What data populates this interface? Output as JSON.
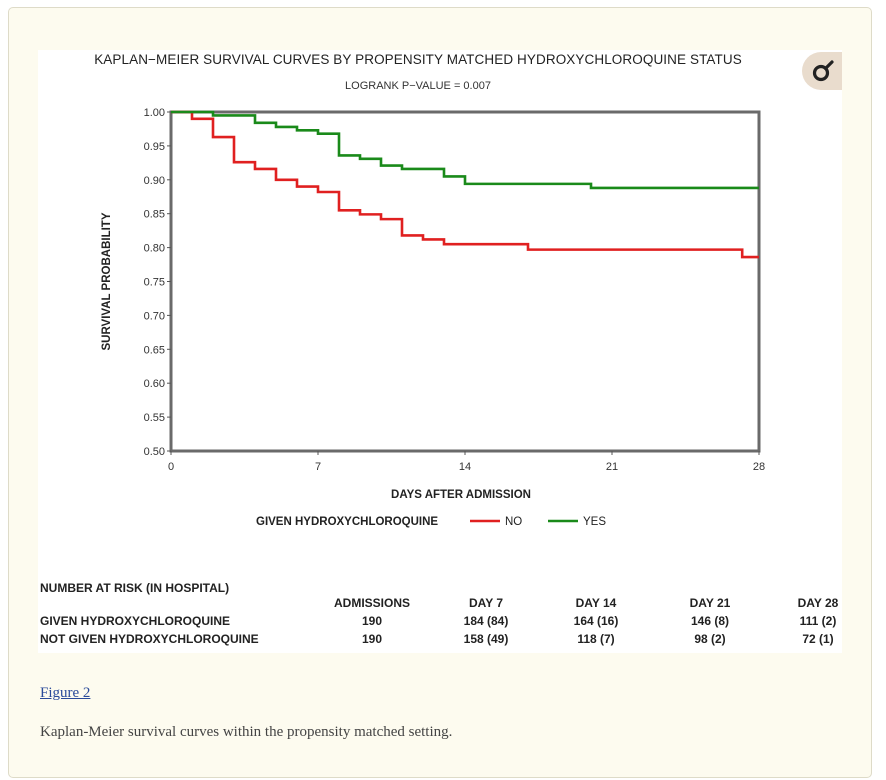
{
  "chart_data": {
    "type": "line",
    "title": "KAPLAN−MEIER SURVIVAL CURVES BY PROPENSITY MATCHED HYDROXYCHLOROQUINE STATUS",
    "subtitle": "LOGRANK P−VALUE = 0.007",
    "xlabel": "DAYS AFTER ADMISSION",
    "ylabel": "SURVIVAL PROBABILITY",
    "xlim": [
      0,
      28
    ],
    "ylim": [
      0.5,
      1.0
    ],
    "x_ticks": [
      "0",
      "7",
      "14",
      "21",
      "28"
    ],
    "y_ticks": [
      "0.50",
      "0.55",
      "0.60",
      "0.65",
      "0.70",
      "0.75",
      "0.80",
      "0.85",
      "0.90",
      "0.95",
      "1.00"
    ],
    "legend_title": "GIVEN HYDROXYCHLOROQUINE",
    "legend_position": "bottom",
    "series": [
      {
        "name": "NO",
        "color": "#e02020",
        "step": true,
        "points": [
          [
            0,
            1.0
          ],
          [
            1,
            0.99
          ],
          [
            2,
            0.963
          ],
          [
            3,
            0.926
          ],
          [
            4,
            0.916
          ],
          [
            5,
            0.9
          ],
          [
            6,
            0.89
          ],
          [
            7,
            0.882
          ],
          [
            8,
            0.855
          ],
          [
            9,
            0.849
          ],
          [
            10,
            0.842
          ],
          [
            11,
            0.818
          ],
          [
            12,
            0.812
          ],
          [
            13,
            0.805
          ],
          [
            17,
            0.797
          ],
          [
            27.2,
            0.786
          ],
          [
            28,
            0.786
          ]
        ]
      },
      {
        "name": "YES",
        "color": "#1a8a1a",
        "step": true,
        "points": [
          [
            0,
            1.0
          ],
          [
            2,
            0.995
          ],
          [
            4,
            0.984
          ],
          [
            5,
            0.978
          ],
          [
            6,
            0.973
          ],
          [
            7,
            0.968
          ],
          [
            8,
            0.936
          ],
          [
            9,
            0.931
          ],
          [
            10,
            0.921
          ],
          [
            11,
            0.916
          ],
          [
            13,
            0.905
          ],
          [
            14,
            0.894
          ],
          [
            20,
            0.888
          ],
          [
            28,
            0.888
          ]
        ]
      }
    ]
  },
  "risk": {
    "title": "NUMBER AT RISK (IN HOSPITAL)",
    "columns": [
      "ADMISSIONS",
      "DAY 7",
      "DAY 14",
      "DAY 21",
      "DAY 28"
    ],
    "rows": [
      {
        "label": "GIVEN HYDROXYCHLOROQUINE",
        "values": [
          "190",
          "184 (84)",
          "164 (16)",
          "146 (8)",
          "111 (2)"
        ]
      },
      {
        "label": "NOT GIVEN HYDROXYCHLOROQUINE",
        "values": [
          "190",
          "158 (49)",
          "118 (7)",
          "98 (2)",
          "72 (1)"
        ]
      }
    ]
  },
  "figure": {
    "link_text": "Figure 2",
    "caption": "Kaplan-Meier survival curves within the propensity matched setting.",
    "badge_icon": "female-symbol-icon"
  }
}
